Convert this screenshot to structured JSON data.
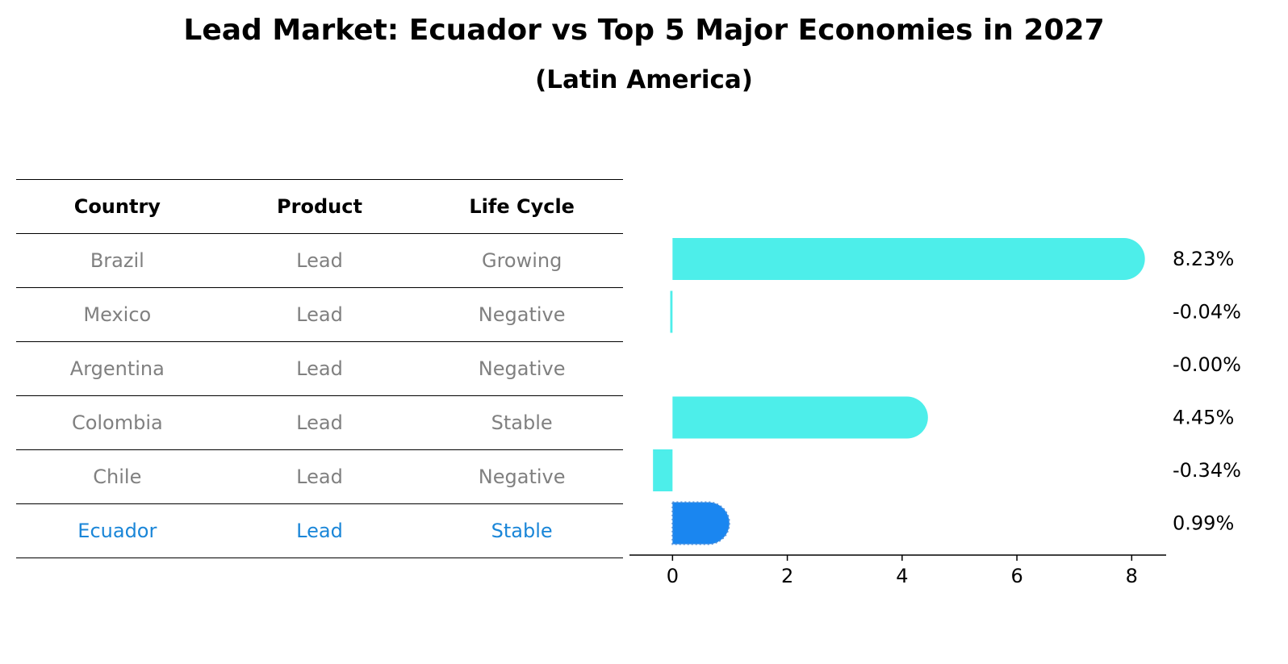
{
  "title": "Lead Market: Ecuador vs Top 5 Major Economies in 2027",
  "subtitle": "(Latin America)",
  "table": {
    "headers": [
      "Country",
      "Product",
      "Life Cycle"
    ],
    "rows": [
      {
        "country": "Brazil",
        "product": "Lead",
        "life_cycle": "Growing"
      },
      {
        "country": "Mexico",
        "product": "Lead",
        "life_cycle": "Negative"
      },
      {
        "country": "Argentina",
        "product": "Lead",
        "life_cycle": "Negative"
      },
      {
        "country": "Colombia",
        "product": "Lead",
        "life_cycle": "Stable"
      },
      {
        "country": "Chile",
        "product": "Lead",
        "life_cycle": "Negative"
      },
      {
        "country": "Ecuador",
        "product": "Lead",
        "life_cycle": "Stable"
      }
    ],
    "text_color": "#808080",
    "highlight_color": "#1a86d8"
  },
  "chart_data": {
    "type": "bar",
    "orientation": "horizontal",
    "categories": [
      "Brazil",
      "Mexico",
      "Argentina",
      "Colombia",
      "Chile",
      "Ecuador"
    ],
    "values": [
      8.23,
      -0.04,
      -0.0,
      4.45,
      -0.34,
      0.99
    ],
    "value_labels": [
      "8.23%",
      "-0.04%",
      "-0.00%",
      "4.45%",
      "-0.34%",
      "0.99%"
    ],
    "xlim": [
      -0.75,
      8.6
    ],
    "xticks": [
      0,
      2,
      4,
      6,
      8
    ],
    "grid": false,
    "bar_color": "#4deeea",
    "highlight_color": "#1a86f0",
    "highlight_category": "Ecuador",
    "title": "",
    "xlabel": "",
    "ylabel": ""
  }
}
